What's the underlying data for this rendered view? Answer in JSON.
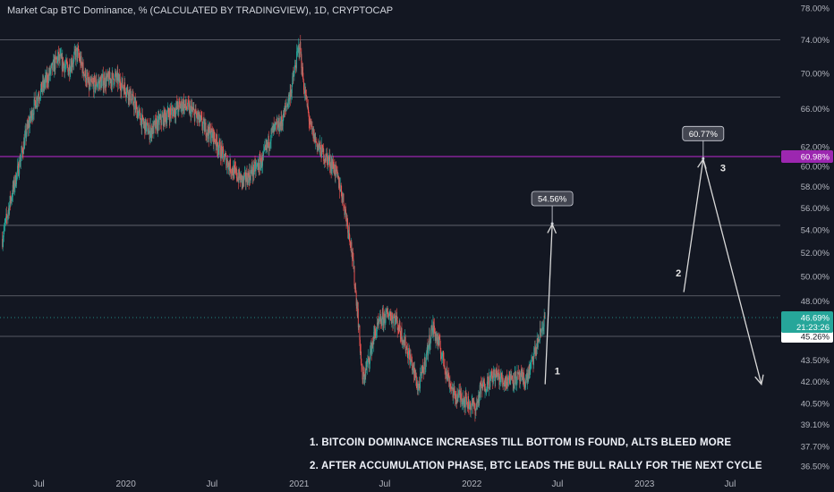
{
  "chart_title": "Market Cap BTC Dominance, % (CALCULATED BY TRADINGVIEW), 1D, CRYPTOCAP",
  "colors": {
    "background": "#131722",
    "candle_up": "#26a69a",
    "candle_down": "#ef5350",
    "resistance_line": "#9c27b0",
    "level_lines": "#b2b5be",
    "arrows": "#d9d9d9"
  },
  "chart_data": {
    "type": "candlestick",
    "title": "Market Cap BTC Dominance, % (CALCULATED BY TRADINGVIEW), 1D, CRYPTOCAP",
    "y_scale": "log",
    "y_unit": "%",
    "ylim": [
      36.2,
      79.0
    ],
    "xlim": [
      "2019-04-10",
      "2023-10-15"
    ],
    "y_ticks": [
      36.5,
      37.7,
      39.1,
      40.5,
      42.0,
      43.5,
      45.26,
      46.69,
      48.0,
      50.0,
      52.0,
      54.0,
      56.0,
      58.0,
      60.0,
      60.98,
      62.0,
      66.0,
      70.0,
      74.0,
      78.0
    ],
    "y_tick_labels": [
      "36.50%",
      "37.70%",
      "39.10%",
      "40.50%",
      "42.00%",
      "43.50%",
      "45.26%",
      "46.69%",
      "48.00%",
      "50.00%",
      "52.00%",
      "54.00%",
      "56.00%",
      "58.00%",
      "60.00%",
      "60.98%",
      "62.00%",
      "66.00%",
      "70.00%",
      "74.00%",
      "78.00%"
    ],
    "x_ticks": [
      {
        "date": "2019-07-01",
        "label": "Jul"
      },
      {
        "date": "2020-01-01",
        "label": "2020"
      },
      {
        "date": "2020-07-01",
        "label": "Jul"
      },
      {
        "date": "2021-01-01",
        "label": "2021"
      },
      {
        "date": "2021-07-01",
        "label": "Jul"
      },
      {
        "date": "2022-01-01",
        "label": "2022"
      },
      {
        "date": "2022-07-01",
        "label": "Jul"
      },
      {
        "date": "2023-01-01",
        "label": "2023"
      },
      {
        "date": "2023-07-01",
        "label": "Jul"
      }
    ],
    "price_path": [
      [
        "2019-04-15",
        53.2
      ],
      [
        "2019-05-01",
        56.5
      ],
      [
        "2019-05-20",
        60.0
      ],
      [
        "2019-06-05",
        63.5
      ],
      [
        "2019-06-25",
        67.0
      ],
      [
        "2019-07-20",
        69.5
      ],
      [
        "2019-08-10",
        71.8
      ],
      [
        "2019-09-01",
        70.5
      ],
      [
        "2019-09-20",
        72.5
      ],
      [
        "2019-10-15",
        68.5
      ],
      [
        "2019-11-10",
        69.0
      ],
      [
        "2019-12-10",
        69.5
      ],
      [
        "2020-01-05",
        68.0
      ],
      [
        "2020-02-05",
        64.5
      ],
      [
        "2020-02-20",
        63.5
      ],
      [
        "2020-03-10",
        64.5
      ],
      [
        "2020-04-01",
        65.5
      ],
      [
        "2020-05-01",
        66.5
      ],
      [
        "2020-05-25",
        65.5
      ],
      [
        "2020-06-15",
        64.0
      ],
      [
        "2020-07-05",
        63.0
      ],
      [
        "2020-07-25",
        61.0
      ],
      [
        "2020-08-15",
        59.5
      ],
      [
        "2020-09-05",
        58.5
      ],
      [
        "2020-09-25",
        59.5
      ],
      [
        "2020-10-15",
        60.5
      ],
      [
        "2020-11-05",
        63.5
      ],
      [
        "2020-11-25",
        64.5
      ],
      [
        "2020-12-15",
        68.0
      ],
      [
        "2021-01-02",
        73.5
      ],
      [
        "2021-01-10",
        69.0
      ],
      [
        "2021-01-25",
        64.0
      ],
      [
        "2021-02-10",
        62.0
      ],
      [
        "2021-02-25",
        61.0
      ],
      [
        "2021-03-15",
        60.0
      ],
      [
        "2021-04-01",
        57.5
      ],
      [
        "2021-04-20",
        53.0
      ],
      [
        "2021-05-05",
        47.0
      ],
      [
        "2021-05-15",
        42.0
      ],
      [
        "2021-05-28",
        43.5
      ],
      [
        "2021-06-10",
        45.5
      ],
      [
        "2021-06-25",
        46.5
      ],
      [
        "2021-07-10",
        47.0
      ],
      [
        "2021-07-25",
        46.5
      ],
      [
        "2021-08-10",
        45.0
      ],
      [
        "2021-08-25",
        43.5
      ],
      [
        "2021-09-10",
        41.5
      ],
      [
        "2021-09-25",
        43.5
      ],
      [
        "2021-10-10",
        46.0
      ],
      [
        "2021-10-25",
        44.5
      ],
      [
        "2021-11-10",
        42.5
      ],
      [
        "2021-11-25",
        41.0
      ],
      [
        "2021-12-10",
        41.0
      ],
      [
        "2021-12-25",
        40.5
      ],
      [
        "2022-01-10",
        40.2
      ],
      [
        "2022-01-20",
        41.5
      ],
      [
        "2022-02-05",
        42.0
      ],
      [
        "2022-02-20",
        42.5
      ],
      [
        "2022-03-10",
        42.0
      ],
      [
        "2022-03-25",
        42.3
      ],
      [
        "2022-04-10",
        42.2
      ],
      [
        "2022-04-25",
        42.0
      ],
      [
        "2022-05-10",
        43.5
      ],
      [
        "2022-05-22",
        45.0
      ],
      [
        "2022-06-05",
        46.69
      ]
    ],
    "last_value": 46.69,
    "countdown": "21:23:26",
    "levels": [
      {
        "value": 74.0,
        "kind": "level"
      },
      {
        "value": 67.3,
        "kind": "level"
      },
      {
        "value": 60.98,
        "kind": "resistance",
        "label": "60.98%"
      },
      {
        "value": 54.4,
        "kind": "level"
      },
      {
        "value": 48.4,
        "kind": "level"
      },
      {
        "value": 46.69,
        "kind": "price_dotted"
      },
      {
        "value": 45.26,
        "kind": "level",
        "label": "45.26%"
      }
    ],
    "callouts": [
      {
        "value": 54.56,
        "date": "2022-06-20",
        "label": "54.56%"
      },
      {
        "value": 60.77,
        "date": "2023-05-05",
        "label": "60.77%"
      }
    ],
    "projection_arrows": [
      {
        "from": [
          "2022-06-05",
          41.8
        ],
        "to": [
          "2022-06-20",
          54.5
        ],
        "label": "1",
        "label_at": [
          "2022-06-25",
          42.5
        ]
      },
      {
        "from": [
          "2023-03-25",
          48.7
        ],
        "to": [
          "2023-05-05",
          60.7
        ],
        "label": "2",
        "label_at": [
          "2023-03-08",
          50.0
        ]
      },
      {
        "from": [
          "2023-05-05",
          60.7
        ],
        "to": [
          "2023-09-05",
          41.8
        ],
        "label": "3",
        "label_at": [
          "2023-06-10",
          59.5
        ]
      }
    ]
  },
  "annotations": [
    "1. BITCOIN DOMINANCE INCREASES TILL BOTTOM IS FOUND, ALTS BLEED MORE",
    "2. AFTER ACCUMULATION PHASE, BTC LEADS THE BULL RALLY FOR THE NEXT CYCLE"
  ]
}
